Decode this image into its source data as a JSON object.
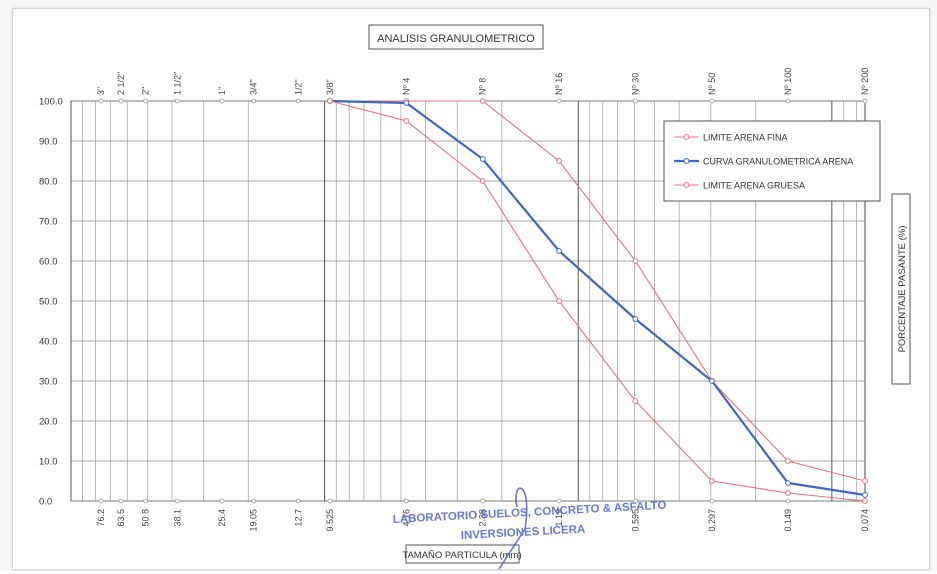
{
  "chart_data": {
    "type": "line",
    "title": "ANALISIS GRANULOMETRICO",
    "xlabel": "TAMAÑO PARTICULA (mm)",
    "ylabel": "PORCENTAJE PASANTE (%)",
    "x_scale": "log",
    "xlim": [
      0.074,
      100
    ],
    "ylim": [
      0,
      100
    ],
    "y_ticks": [
      "100.0",
      "90.0",
      "80.0",
      "70.0",
      "60.0",
      "50.0",
      "40.0",
      "30.0",
      "20.0",
      "10.0",
      "0.0"
    ],
    "grid": true,
    "legend_position": "top-right",
    "sieves": [
      {
        "name": "3\"",
        "size": 76.2,
        "size_label": "76.2"
      },
      {
        "name": "2 1/2\"",
        "size": 63.5,
        "size_label": "63.5"
      },
      {
        "name": "2\"",
        "size": 50.8,
        "size_label": "50.8"
      },
      {
        "name": "1 1/2\"",
        "size": 38.1,
        "size_label": "38.1"
      },
      {
        "name": "1\"",
        "size": 25.4,
        "size_label": "25.4"
      },
      {
        "name": "3/4\"",
        "size": 19.05,
        "size_label": "19.05"
      },
      {
        "name": "1/2\"",
        "size": 12.7,
        "size_label": "12.7"
      },
      {
        "name": "3/8\"",
        "size": 9.525,
        "size_label": "9.525"
      },
      {
        "name": "Nº 4",
        "size": 4.76,
        "size_label": "4.76"
      },
      {
        "name": "Nº 8",
        "size": 2.38,
        "size_label": "2.38"
      },
      {
        "name": "Nº 16",
        "size": 1.19,
        "size_label": "1.19"
      },
      {
        "name": "Nº 30",
        "size": 0.595,
        "size_label": "0.595"
      },
      {
        "name": "Nº 50",
        "size": 0.297,
        "size_label": "0.297"
      },
      {
        "name": "Nº 100",
        "size": 0.149,
        "size_label": "0.149"
      },
      {
        "name": "Nº 200",
        "size": 0.074,
        "size_label": "0.074"
      }
    ],
    "series": [
      {
        "name": "LIMITE ARENA FINA",
        "color": "#e8707a",
        "x": [
          9.525,
          4.76,
          2.38,
          1.19,
          0.595,
          0.297,
          0.149,
          0.074
        ],
        "y": [
          100,
          100,
          100,
          85,
          60,
          30,
          10,
          5
        ]
      },
      {
        "name": "CURVA GRANULOMETRICA ARENA",
        "color": "#3f66c4",
        "x": [
          9.525,
          4.76,
          2.38,
          1.19,
          0.595,
          0.297,
          0.149,
          0.074
        ],
        "y": [
          100,
          99.5,
          85.5,
          62.5,
          45.5,
          30,
          4.5,
          1.5
        ]
      },
      {
        "name": "LIMITE ARENA GRUESA",
        "color": "#e8707a",
        "x": [
          9.525,
          4.76,
          2.38,
          1.19,
          0.595,
          0.297,
          0.149,
          0.074
        ],
        "y": [
          100,
          95,
          80,
          50,
          25,
          5,
          2,
          0
        ]
      }
    ]
  },
  "stamp": {
    "line1": "LABORATORIO SUELOS, CONCRETO & ASFALTO",
    "line2": "INVERSIONES LICERA"
  }
}
